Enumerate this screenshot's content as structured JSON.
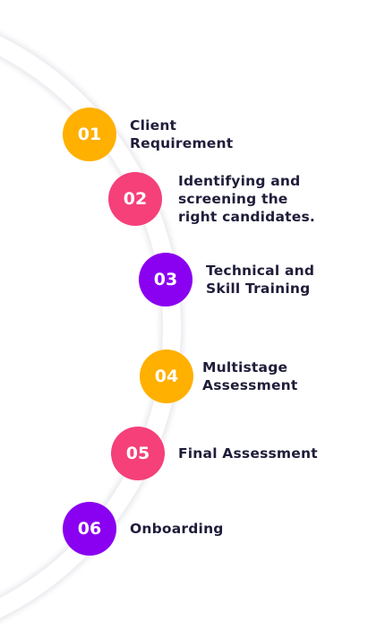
{
  "colors": {
    "orange": "#FFB000",
    "pink": "#F5407A",
    "purple": "#8A00F0",
    "arc": "#f4f4f6",
    "text": "#1f1d3a"
  },
  "steps": [
    {
      "number": "01",
      "lines": [
        "Client",
        "Requirement"
      ],
      "color": "#FFB000"
    },
    {
      "number": "02",
      "lines": [
        "Identifying and",
        "screening the",
        "right candidates."
      ],
      "color": "#F5407A"
    },
    {
      "number": "03",
      "lines": [
        "Technical and",
        "Skill Training"
      ],
      "color": "#8A00F0"
    },
    {
      "number": "04",
      "lines": [
        "Multistage",
        "Assessment"
      ],
      "color": "#FFB000"
    },
    {
      "number": "05",
      "lines": [
        "Final Assessment"
      ],
      "color": "#F5407A"
    },
    {
      "number": "06",
      "lines": [
        "Onboarding"
      ],
      "color": "#8A00F0"
    }
  ]
}
